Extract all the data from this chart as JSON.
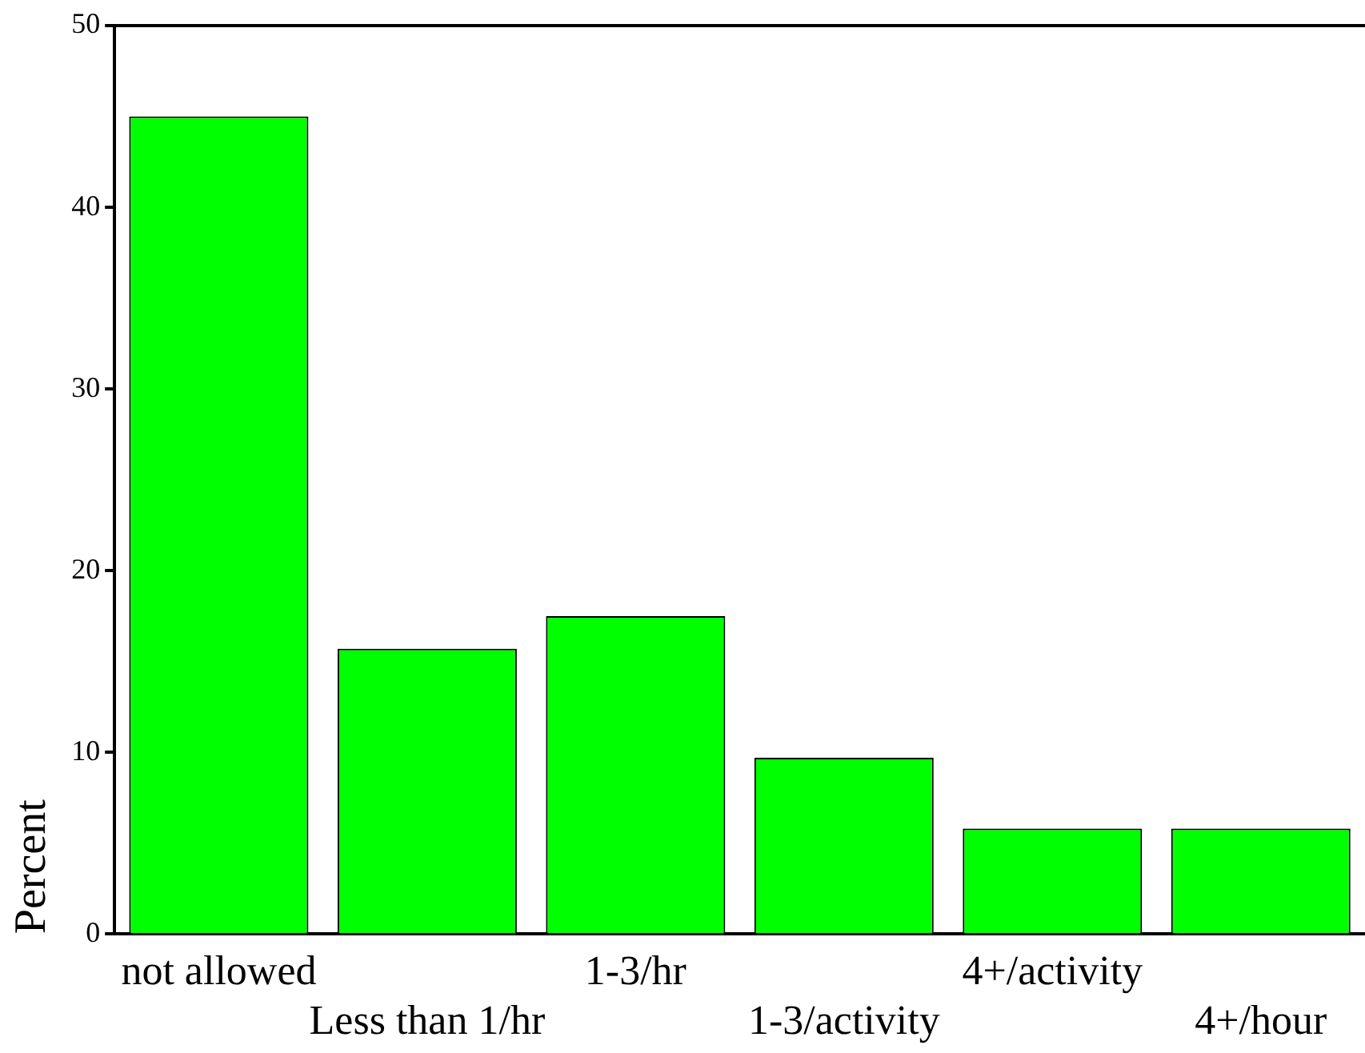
{
  "chart_data": {
    "type": "bar",
    "ylabel": "Percent",
    "categories": [
      "not allowed",
      "Less than 1/hr",
      "1-3/hr",
      "1-3/activity",
      "4+/activity",
      "4+/hour"
    ],
    "values": [
      45.0,
      15.7,
      17.5,
      9.7,
      5.8,
      5.8
    ],
    "color": "#00ff00",
    "ylim": [
      0,
      50
    ],
    "yticks": [
      0,
      10,
      20,
      30,
      40,
      50
    ],
    "grid": false,
    "legend": false
  }
}
